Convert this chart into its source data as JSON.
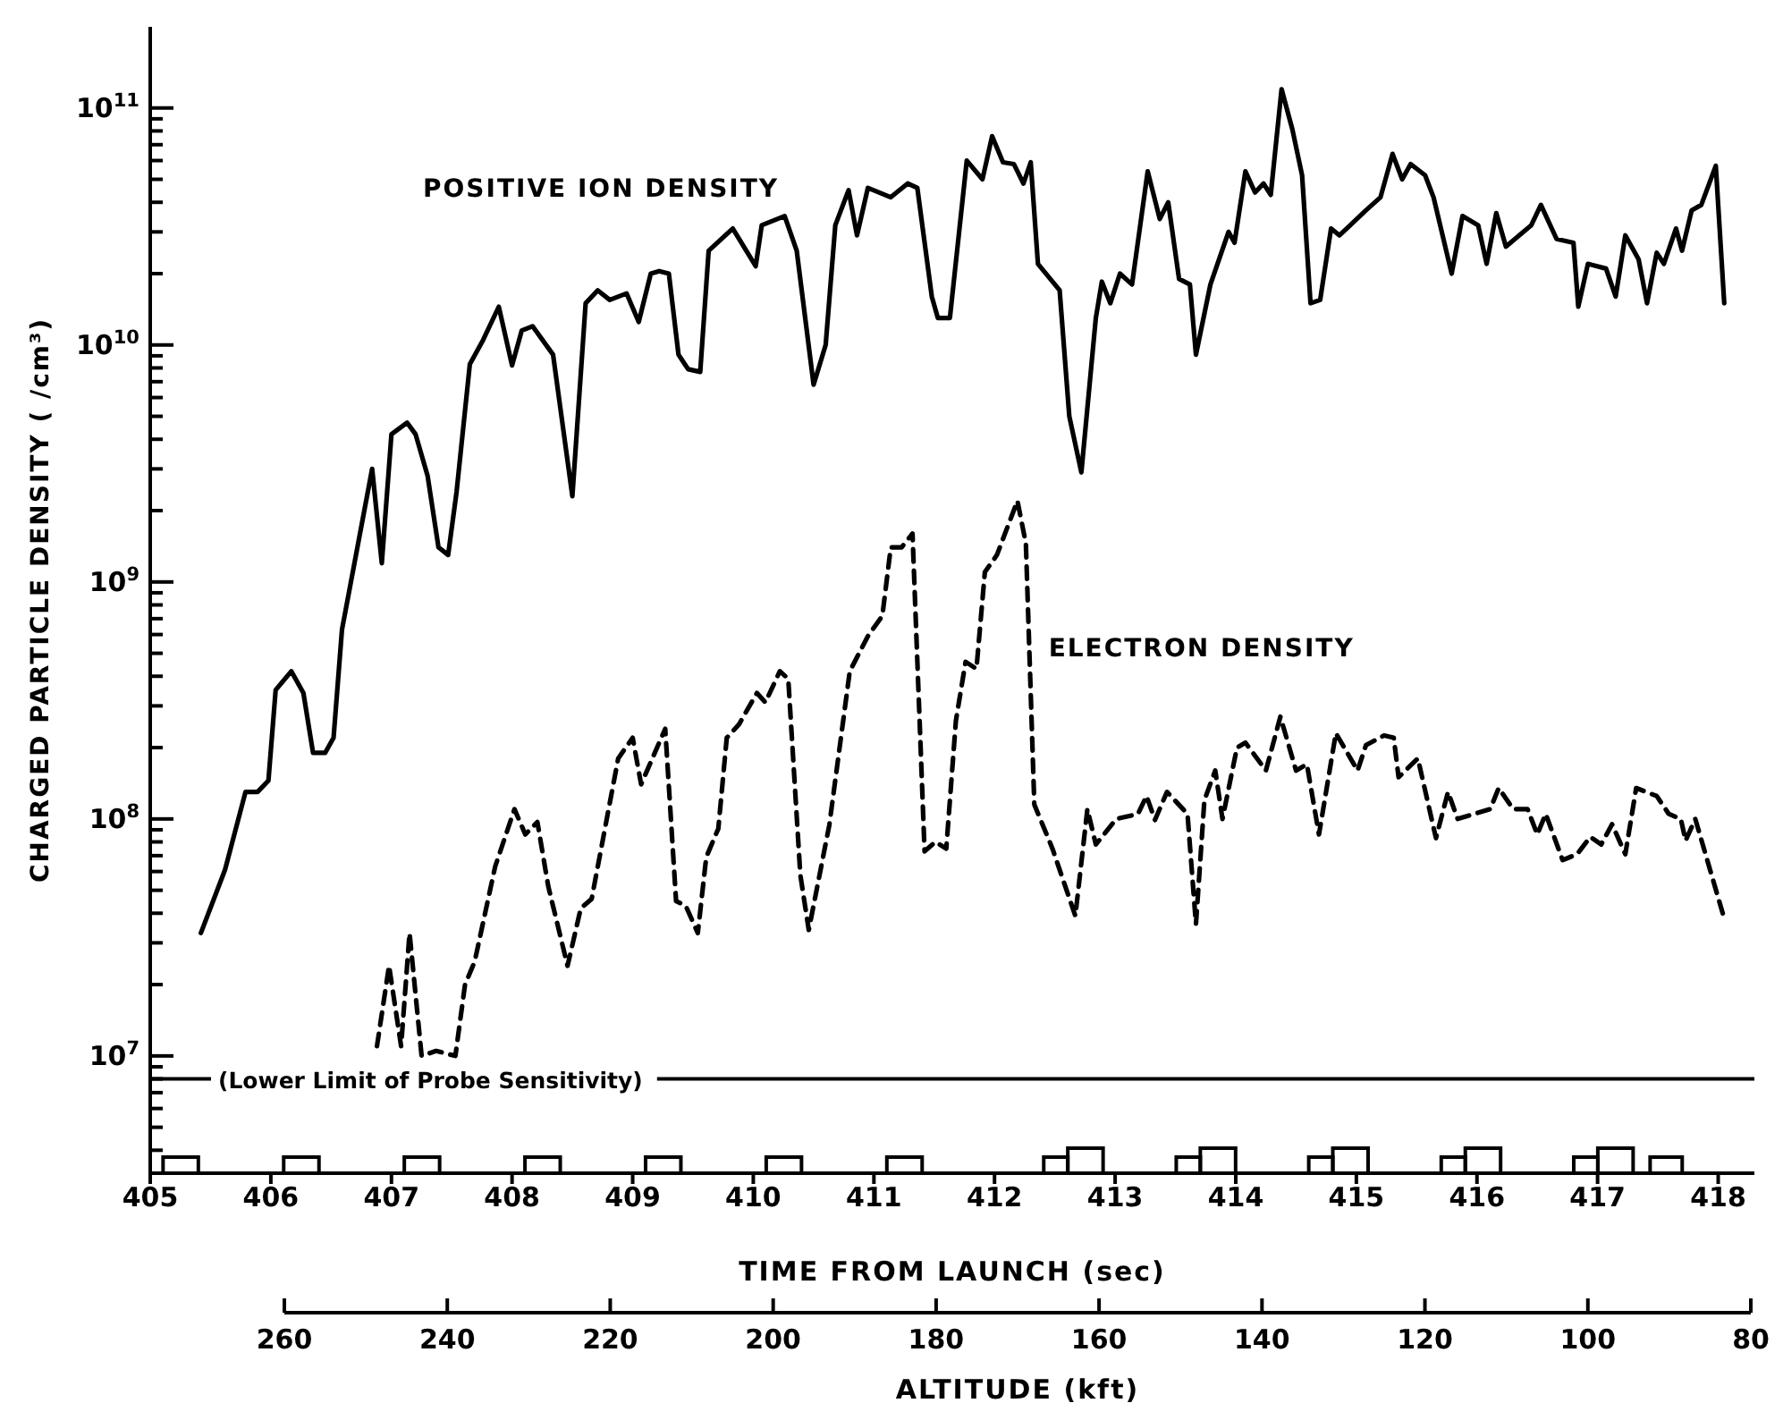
{
  "chart_data": {
    "type": "line",
    "xlabel": "TIME FROM LAUNCH (sec)",
    "ylabel": "CHARGED PARTICLE DENSITY ( /cm³)",
    "x2label": "ALTITUDE (kft)",
    "log": "y",
    "marker": "none",
    "xlim": [
      405,
      418.3
    ],
    "xticks": [
      405,
      406,
      407,
      408,
      409,
      410,
      411,
      412,
      413,
      414,
      415,
      416,
      417,
      418
    ],
    "x2lim": [
      260,
      80
    ],
    "x2ticks": [
      260,
      240,
      220,
      200,
      180,
      160,
      140,
      120,
      100,
      80
    ],
    "ylim": [
      3200000,
      220000000000
    ],
    "yticks": [
      {
        "value": 4000000,
        "label": null
      },
      {
        "value": 5000000,
        "label": null
      },
      {
        "value": 6000000,
        "label": null
      },
      {
        "value": 7000000,
        "label": null
      },
      {
        "value": 8000000,
        "label": null
      },
      {
        "value": 9000000,
        "label": null
      },
      {
        "value": 10000000,
        "label": "10$^{7}$"
      },
      {
        "value": 20000000,
        "label": null
      },
      {
        "value": 30000000,
        "label": null
      },
      {
        "value": 40000000,
        "label": null
      },
      {
        "value": 50000000,
        "label": null
      },
      {
        "value": 60000000,
        "label": null
      },
      {
        "value": 70000000,
        "label": null
      },
      {
        "value": 80000000,
        "label": null
      },
      {
        "value": 90000000,
        "label": null
      },
      {
        "value": 100000000,
        "label": "10$^{8}$"
      },
      {
        "value": 200000000,
        "label": null
      },
      {
        "value": 300000000,
        "label": null
      },
      {
        "value": 400000000,
        "label": null
      },
      {
        "value": 500000000,
        "label": null
      },
      {
        "value": 600000000,
        "label": null
      },
      {
        "value": 700000000,
        "label": null
      },
      {
        "value": 800000000,
        "label": null
      },
      {
        "value": 900000000,
        "label": null
      },
      {
        "value": 1000000000,
        "label": "10$^{9}$"
      },
      {
        "value": 2000000000,
        "label": null
      },
      {
        "value": 3000000000,
        "label": null
      },
      {
        "value": 4000000000,
        "label": null
      },
      {
        "value": 5000000000,
        "label": null
      },
      {
        "value": 6000000000,
        "label": null
      },
      {
        "value": 7000000000,
        "label": null
      },
      {
        "value": 8000000000,
        "label": null
      },
      {
        "value": 9000000000,
        "label": null
      },
      {
        "value": 10000000000,
        "label": "10$^{10}$"
      },
      {
        "value": 20000000000,
        "label": null
      },
      {
        "value": 30000000000,
        "label": null
      },
      {
        "value": 40000000000,
        "label": null
      },
      {
        "value": 50000000000,
        "label": null
      },
      {
        "value": 60000000000,
        "label": null
      },
      {
        "value": 70000000000,
        "label": null
      },
      {
        "value": 80000000000,
        "label": null
      },
      {
        "value": 90000000000,
        "label": null
      },
      {
        "value": 100000000000,
        "label": "10$^{11}$"
      }
    ],
    "ref_lines": [
      {
        "axis": "y",
        "value": 8000000,
        "label": "(Lower Limit of Probe Sensitivity)",
        "color": "#000000",
        "line_style": "solid"
      }
    ],
    "series": [
      {
        "name": "POSITIVE ION DENSITY",
        "color": "#000000",
        "line_style": "solid",
        "x": [
          405.42,
          405.62,
          405.79,
          405.89,
          405.98,
          406.04,
          406.17,
          406.27,
          406.35,
          406.45,
          406.52,
          406.59,
          406.84,
          406.92,
          407.0,
          407.13,
          407.2,
          407.3,
          407.39,
          407.47,
          407.54,
          407.65,
          407.76,
          407.89,
          408.0,
          408.08,
          408.17,
          408.34,
          408.5,
          408.61,
          408.71,
          408.81,
          408.95,
          409.05,
          409.15,
          409.22,
          409.3,
          409.38,
          409.46,
          409.56,
          409.63,
          409.83,
          410.02,
          410.07,
          410.26,
          410.36,
          410.5,
          410.6,
          410.68,
          410.79,
          410.86,
          410.95,
          411.14,
          411.28,
          411.36,
          411.48,
          411.53,
          411.63,
          411.77,
          411.9,
          411.98,
          412.07,
          412.16,
          412.24,
          412.3,
          412.36,
          412.54,
          412.62,
          412.72,
          412.84,
          412.89,
          412.96,
          413.04,
          413.14,
          413.27,
          413.37,
          413.44,
          413.53,
          413.62,
          413.67,
          413.79,
          413.94,
          413.99,
          414.08,
          414.16,
          414.23,
          414.29,
          414.38,
          414.47,
          414.55,
          414.62,
          414.7,
          414.79,
          414.86,
          415.08,
          415.2,
          415.3,
          415.38,
          415.45,
          415.57,
          415.64,
          415.79,
          415.88,
          416.01,
          416.08,
          416.16,
          416.24,
          416.45,
          416.53,
          416.66,
          416.8,
          416.84,
          416.92,
          417.07,
          417.15,
          417.23,
          417.34,
          417.41,
          417.49,
          417.55,
          417.65,
          417.7,
          417.78,
          417.86,
          417.98,
          418.05
        ],
        "values": [
          33000000,
          61000000,
          130000000,
          130000000,
          145000000,
          350000000,
          420000000,
          340000000,
          190000000,
          190000000,
          220000000,
          630000000,
          3000000000,
          1200000000,
          4200000000,
          4700000000,
          4200000000,
          2800000000,
          1400000000,
          1300000000,
          2400000000,
          8300000000,
          10500000000,
          14500000000,
          8200000000,
          11500000000,
          12000000000,
          9100000000,
          2300000000,
          15000000000,
          17000000000,
          15500000000,
          16500000000,
          12500000000,
          20000000000,
          20500000000,
          20000000000,
          9100000000,
          7900000000,
          7700000000,
          25000000000,
          31000000000,
          21500000000,
          32000000000,
          35000000000,
          25000000000,
          6800000000,
          10000000000,
          32000000000,
          45000000000,
          29000000000,
          46000000000,
          42000000000,
          48000000000,
          46000000000,
          16000000000,
          13000000000,
          13000000000,
          60000000000,
          50000000000,
          76000000000,
          59000000000,
          58000000000,
          48000000000,
          59000000000,
          22000000000,
          17000000000,
          5000000000,
          2900000000,
          13000000000,
          18500000000,
          15000000000,
          20000000000,
          18000000000,
          54000000000,
          34000000000,
          40000000000,
          19000000000,
          18000000000,
          9100000000,
          18000000000,
          30000000000,
          27000000000,
          54000000000,
          44000000000,
          48000000000,
          43000000000,
          120000000000,
          81000000000,
          52000000000,
          15000000000,
          15500000000,
          31000000000,
          29000000000,
          37000000000,
          42000000000,
          64000000000,
          50000000000,
          58000000000,
          52000000000,
          42000000000,
          20000000000,
          35000000000,
          32000000000,
          22000000000,
          36000000000,
          26000000000,
          32000000000,
          39000000000,
          28000000000,
          27000000000,
          14500000000,
          22000000000,
          21000000000,
          16000000000,
          29000000000,
          23000000000,
          15000000000,
          24500000000,
          22000000000,
          31000000000,
          25000000000,
          37000000000,
          39000000000,
          57000000000,
          15000000000
        ]
      },
      {
        "name": "ELECTRON DENSITY",
        "color": "#000000",
        "line_style": "dashed",
        "x": [
          406.88,
          406.98,
          407.08,
          407.15,
          407.25,
          407.37,
          407.53,
          407.61,
          407.69,
          407.86,
          408.02,
          408.11,
          408.21,
          408.3,
          408.46,
          408.57,
          408.66,
          408.88,
          409.0,
          409.07,
          409.27,
          409.36,
          409.44,
          409.54,
          409.61,
          409.71,
          409.78,
          409.88,
          410.03,
          410.1,
          410.22,
          410.29,
          410.39,
          410.46,
          410.63,
          410.8,
          410.95,
          411.07,
          411.14,
          411.23,
          411.32,
          411.42,
          411.51,
          411.6,
          411.68,
          411.76,
          411.85,
          411.92,
          412.02,
          412.19,
          412.26,
          412.33,
          412.48,
          412.67,
          412.77,
          412.84,
          413.01,
          413.19,
          413.26,
          413.33,
          413.43,
          413.6,
          413.67,
          413.74,
          413.83,
          413.89,
          414.01,
          414.08,
          414.25,
          414.37,
          414.5,
          414.59,
          414.69,
          414.83,
          415.01,
          415.08,
          415.23,
          415.31,
          415.35,
          415.51,
          415.66,
          415.76,
          415.84,
          416.11,
          416.18,
          416.3,
          416.42,
          416.5,
          416.57,
          416.71,
          416.83,
          416.94,
          417.03,
          417.12,
          417.23,
          417.32,
          417.49,
          417.59,
          417.69,
          417.73,
          417.81,
          418.05
        ],
        "values": [
          11000000,
          24000000,
          11000000,
          33000000,
          10000000,
          10500000,
          10000000,
          20000000,
          25000000,
          63000000,
          110000000,
          86000000,
          97000000,
          52000000,
          24000000,
          42000000,
          46000000,
          180000000,
          220000000,
          140000000,
          240000000,
          45000000,
          43000000,
          33000000,
          69000000,
          91000000,
          220000000,
          250000000,
          340000000,
          310000000,
          420000000,
          390000000,
          58000000,
          34000000,
          94000000,
          420000000,
          590000000,
          720000000,
          1400000000,
          1400000000,
          1600000000,
          73000000,
          80000000,
          75000000,
          260000000,
          460000000,
          430000000,
          1100000000,
          1300000000,
          2200000000,
          1450000000,
          115000000,
          75000000,
          39000000,
          110000000,
          78000000,
          100000000,
          105000000,
          125000000,
          99000000,
          130000000,
          105000000,
          36000000,
          120000000,
          160000000,
          100000000,
          200000000,
          210000000,
          160000000,
          270000000,
          160000000,
          170000000,
          86000000,
          230000000,
          160000000,
          205000000,
          225000000,
          220000000,
          150000000,
          180000000,
          83000000,
          130000000,
          100000000,
          110000000,
          135000000,
          110000000,
          110000000,
          86000000,
          105000000,
          67000000,
          71000000,
          84000000,
          78000000,
          95000000,
          71000000,
          135000000,
          125000000,
          105000000,
          100000000,
          81000000,
          100000000,
          38000000
        ]
      }
    ]
  }
}
